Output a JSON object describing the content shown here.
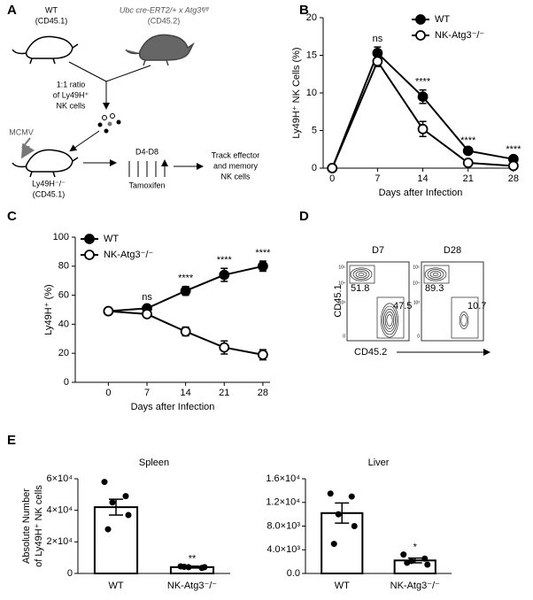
{
  "panels": [
    "A",
    "B",
    "C",
    "D",
    "E"
  ],
  "diagram": {
    "donor_wt": [
      "WT",
      "(CD45.1)"
    ],
    "donor_ko": [
      "Ubc cre-ERT2/+ x Atg3ᶠˡ/ᶠˡ",
      "(CD45.2)"
    ],
    "ratio": [
      "1:1 ratio",
      "of Ly49H⁺",
      "NK cells"
    ],
    "infection": "MCMV",
    "recipient": [
      "Ly49H⁻/⁻",
      "(CD45.1)"
    ],
    "days": "D4-D8",
    "treatment": "Tamoxifen",
    "readout": [
      "Track effector",
      "and memory",
      "NK cells"
    ]
  },
  "flow": {
    "xlabel": "CD45.2",
    "ylabel": "CD45.1",
    "axis_ticks": [
      "10⁵",
      "10⁴",
      "10³",
      "0"
    ],
    "plots": [
      {
        "title": "D7",
        "gate_wt": 51.8,
        "gate_ko": 47.5
      },
      {
        "title": "D28",
        "gate_wt": 89.3,
        "gate_ko": 10.7
      }
    ]
  },
  "chart_data": [
    {
      "type": "line",
      "xlabel": "Days after Infection",
      "ylabel": "Ly49H⁺ NK Cells (%)",
      "x": [
        0,
        7,
        14,
        21,
        28
      ],
      "xlim": [
        -1.4,
        28.7
      ],
      "xticks": [
        0,
        7,
        14,
        21,
        28
      ],
      "ylim": [
        0,
        20
      ],
      "yticks": [
        0,
        5,
        10,
        15,
        20
      ],
      "legend": "upper right",
      "series": [
        {
          "name": "WT",
          "color": "#000000",
          "marker": "filled",
          "values": [
            0,
            15.3,
            9.5,
            2.3,
            1.2
          ],
          "errors": [
            0,
            0.8,
            0.9,
            0.3,
            0.2
          ]
        },
        {
          "name": "NK-Atg3⁻/⁻",
          "color": "#000000",
          "marker": "open",
          "values": [
            0,
            14.2,
            5.2,
            0.7,
            0.3
          ],
          "errors": [
            0,
            0.7,
            1.0,
            0.2,
            0.1
          ]
        }
      ],
      "significance": [
        null,
        "ns",
        "****",
        "****",
        "****"
      ]
    },
    {
      "type": "line",
      "xlabel": "Days after Infection",
      "ylabel": "Ly49H⁺ (%)",
      "x": [
        0,
        7,
        14,
        21,
        28
      ],
      "xlim": [
        -6,
        29.3
      ],
      "xticks": [
        0,
        7,
        14,
        21,
        28
      ],
      "ylim": [
        0,
        100
      ],
      "yticks": [
        0,
        20,
        40,
        60,
        80,
        100
      ],
      "legend": "upper left",
      "series": [
        {
          "name": "WT",
          "color": "#000000",
          "marker": "filled",
          "values": [
            49,
            51,
            63,
            74,
            80
          ],
          "errors": [
            1.5,
            2,
            3,
            4.5,
            3.5
          ]
        },
        {
          "name": "NK-Atg3⁻/⁻",
          "color": "#000000",
          "marker": "open",
          "values": [
            49,
            47,
            35,
            24,
            19
          ],
          "errors": [
            1.5,
            2,
            3,
            4.5,
            3.5
          ]
        }
      ],
      "significance": [
        null,
        "ns",
        "****",
        "****",
        "****"
      ]
    },
    {
      "type": "bar",
      "title": "Spleen",
      "ylabel": [
        "Absolute Number",
        "of Ly49H⁺ NK cells"
      ],
      "categories": [
        "WT",
        "NK-Atg3⁻/⁻"
      ],
      "values": [
        42000,
        4000
      ],
      "errors": [
        5000,
        600
      ],
      "points": [
        [
          58000,
          49000,
          45000,
          37000,
          28000
        ],
        [
          4500,
          3500,
          4000,
          4000,
          4200
        ]
      ],
      "color": "#ffffff",
      "edgecolor": "#000000",
      "point_color": "#000000",
      "ylim": [
        0,
        60000
      ],
      "yticks": [
        0,
        {
          "value": 20000,
          "label": "2×10⁴"
        },
        {
          "value": 40000,
          "label": "4×10⁴"
        },
        {
          "value": 60000,
          "label": "6×10⁴"
        }
      ],
      "significance": [
        null,
        "**"
      ]
    },
    {
      "type": "bar",
      "title": "Liver",
      "categories": [
        "WT",
        "NK-Atg3⁻/⁻"
      ],
      "values": [
        10200,
        2200
      ],
      "errors": [
        1700,
        400
      ],
      "points": [
        [
          13500,
          13000,
          10000,
          8000,
          5000
        ],
        [
          3200,
          2500,
          2100,
          1500,
          1800
        ]
      ],
      "color": "#ffffff",
      "edgecolor": "#000000",
      "point_color": "#000000",
      "ylim": [
        0,
        16000
      ],
      "yticks": [
        {
          "value": 0,
          "label": "0.0"
        },
        {
          "value": 4000,
          "label": "4.0×10³"
        },
        {
          "value": 8000,
          "label": "8.0×10³"
        },
        {
          "value": 12000,
          "label": "1.2×10⁴"
        },
        {
          "value": 16000,
          "label": "1.6×10⁴"
        }
      ],
      "significance": [
        null,
        "*"
      ]
    }
  ]
}
